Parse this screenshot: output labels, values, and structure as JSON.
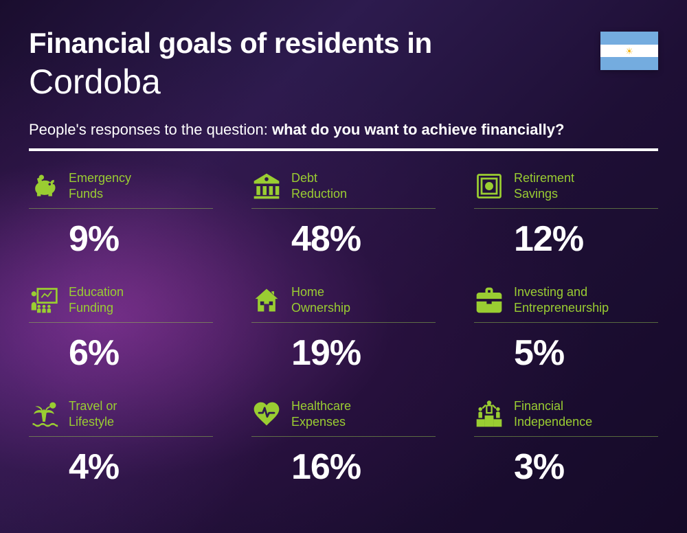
{
  "header": {
    "title_prefix": "Financial goals of residents in",
    "city": "Cordoba",
    "subtitle_prefix": "People's responses to the question: ",
    "subtitle_bold": "what do you want to achieve financially?"
  },
  "flag": {
    "stripe_top": "#74ACDF",
    "stripe_mid": "#ffffff",
    "stripe_bot": "#74ACDF",
    "sun_color": "#F6B40E"
  },
  "colors": {
    "accent": "#9acd32",
    "text": "#ffffff",
    "divider": "#ffffff"
  },
  "items": [
    {
      "label": "Emergency\nFunds",
      "value": "9%",
      "icon": "piggy-bank-icon"
    },
    {
      "label": "Debt\nReduction",
      "value": "48%",
      "icon": "bank-icon"
    },
    {
      "label": "Retirement\nSavings",
      "value": "12%",
      "icon": "safe-icon"
    },
    {
      "label": "Education\nFunding",
      "value": "6%",
      "icon": "presentation-icon"
    },
    {
      "label": "Home\nOwnership",
      "value": "19%",
      "icon": "house-icon"
    },
    {
      "label": "Investing and\nEntrepreneurship",
      "value": "5%",
      "icon": "briefcase-icon"
    },
    {
      "label": "Travel or\nLifestyle",
      "value": "4%",
      "icon": "palm-icon"
    },
    {
      "label": "Healthcare\nExpenses",
      "value": "16%",
      "icon": "heart-pulse-icon"
    },
    {
      "label": "Financial\nIndependence",
      "value": "3%",
      "icon": "podium-icon"
    }
  ]
}
